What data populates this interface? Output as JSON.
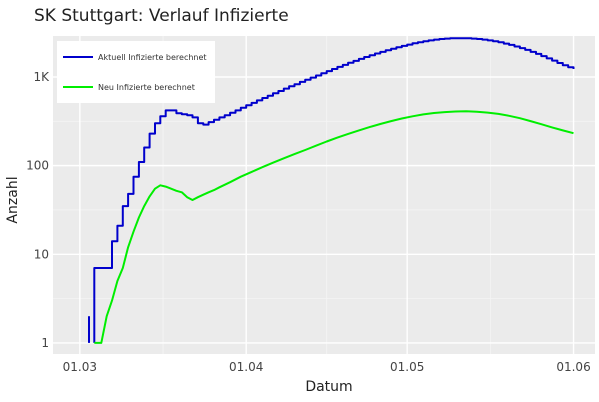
{
  "chart_data": {
    "type": "line",
    "title": "SK Stuttgart: Verlauf Infizierte",
    "xlabel": "Datum",
    "ylabel": "Anzahl",
    "y_scale": "log",
    "ylim": [
      0.75,
      2900
    ],
    "x_ticks": [
      {
        "value": 0,
        "label": "01.03"
      },
      {
        "value": 31,
        "label": "01.04"
      },
      {
        "value": 61,
        "label": "01.05"
      },
      {
        "value": 92,
        "label": "01.06"
      }
    ],
    "xlim": [
      -5,
      96
    ],
    "y_ticks": [
      {
        "value": 1,
        "label": "1"
      },
      {
        "value": 10,
        "label": "10"
      },
      {
        "value": 100,
        "label": "100"
      },
      {
        "value": 1000,
        "label": "1K"
      }
    ],
    "grid": true,
    "legend_position": "top-left",
    "series": [
      {
        "name": "Aktuell Infizierte berechnet",
        "color": "#0000cc",
        "step": true,
        "segments": [
          [
            [
              1.7,
              2
            ],
            [
              1.7,
              1
            ]
          ],
          [
            [
              2.7,
              1
            ],
            [
              2.7,
              7
            ],
            [
              3,
              7
            ],
            [
              4,
              7
            ],
            [
              5,
              7
            ],
            [
              6,
              14
            ],
            [
              7,
              21
            ],
            [
              8,
              35
            ],
            [
              9,
              48
            ],
            [
              10,
              75
            ],
            [
              11,
              110
            ],
            [
              12,
              160
            ],
            [
              13,
              230
            ],
            [
              14,
              300
            ],
            [
              15,
              360
            ],
            [
              16,
              420
            ],
            [
              17,
              420
            ],
            [
              18,
              390
            ],
            [
              19,
              380
            ],
            [
              20,
              370
            ],
            [
              21,
              350
            ],
            [
              22,
              300
            ],
            [
              23,
              290
            ],
            [
              24,
              310
            ],
            [
              25,
              330
            ],
            [
              26,
              350
            ],
            [
              27,
              370
            ],
            [
              28,
              395
            ],
            [
              29,
              420
            ],
            [
              30,
              450
            ],
            [
              31,
              480
            ],
            [
              32,
              510
            ],
            [
              33,
              545
            ],
            [
              34,
              580
            ],
            [
              35,
              615
            ],
            [
              36,
              655
            ],
            [
              37,
              695
            ],
            [
              38,
              740
            ],
            [
              39,
              785
            ],
            [
              40,
              830
            ],
            [
              41,
              880
            ],
            [
              42,
              930
            ],
            [
              43,
              985
            ],
            [
              44,
              1040
            ],
            [
              45,
              1100
            ],
            [
              46,
              1165
            ],
            [
              47,
              1230
            ],
            [
              48,
              1300
            ],
            [
              49,
              1370
            ],
            [
              50,
              1445
            ],
            [
              51,
              1520
            ],
            [
              52,
              1600
            ],
            [
              53,
              1680
            ],
            [
              54,
              1760
            ],
            [
              55,
              1840
            ],
            [
              56,
              1920
            ],
            [
              57,
              2000
            ],
            [
              58,
              2080
            ],
            [
              59,
              2160
            ],
            [
              60,
              2240
            ],
            [
              61,
              2320
            ],
            [
              62,
              2400
            ],
            [
              63,
              2470
            ],
            [
              64,
              2530
            ],
            [
              65,
              2590
            ],
            [
              66,
              2640
            ],
            [
              67,
              2680
            ],
            [
              68,
              2710
            ],
            [
              69,
              2730
            ],
            [
              70,
              2740
            ],
            [
              71,
              2740
            ],
            [
              72,
              2730
            ],
            [
              73,
              2710
            ],
            [
              74,
              2680
            ],
            [
              75,
              2640
            ],
            [
              76,
              2590
            ],
            [
              77,
              2530
            ],
            [
              78,
              2460
            ],
            [
              79,
              2380
            ],
            [
              80,
              2300
            ],
            [
              81,
              2210
            ],
            [
              82,
              2120
            ],
            [
              83,
              2020
            ],
            [
              84,
              1920
            ],
            [
              85,
              1820
            ],
            [
              86,
              1720
            ],
            [
              87,
              1620
            ],
            [
              88,
              1530
            ],
            [
              89,
              1440
            ],
            [
              90,
              1360
            ],
            [
              91,
              1290
            ],
            [
              92,
              1230
            ]
          ]
        ]
      },
      {
        "name": "Neu Infizierte berechnet",
        "color": "#00ee00",
        "step": false,
        "segments": [
          [
            [
              2.7,
              1
            ],
            [
              4,
              1
            ],
            [
              5,
              2
            ],
            [
              6,
              3
            ],
            [
              7,
              5
            ],
            [
              8,
              7
            ],
            [
              9,
              12
            ],
            [
              10,
              18
            ],
            [
              11,
              26
            ],
            [
              12,
              35
            ],
            [
              13,
              45
            ],
            [
              14,
              55
            ],
            [
              15,
              60
            ],
            [
              16,
              58
            ],
            [
              17,
              55
            ],
            [
              18,
              52
            ],
            [
              19,
              50
            ],
            [
              20,
              44
            ],
            [
              21,
              41
            ],
            [
              22,
              44
            ],
            [
              23,
              47
            ],
            [
              24,
              50
            ],
            [
              25,
              53
            ],
            [
              26,
              57
            ],
            [
              28,
              65
            ],
            [
              30,
              75
            ],
            [
              32,
              85
            ],
            [
              34,
              96
            ],
            [
              36,
              108
            ],
            [
              38,
              121
            ],
            [
              40,
              135
            ],
            [
              42,
              150
            ],
            [
              44,
              168
            ],
            [
              46,
              187
            ],
            [
              48,
              207
            ],
            [
              50,
              228
            ],
            [
              52,
              250
            ],
            [
              54,
              272
            ],
            [
              56,
              295
            ],
            [
              58,
              318
            ],
            [
              60,
              340
            ],
            [
              62,
              360
            ],
            [
              64,
              378
            ],
            [
              66,
              392
            ],
            [
              68,
              402
            ],
            [
              70,
              408
            ],
            [
              72,
              410
            ],
            [
              74,
              406
            ],
            [
              76,
              397
            ],
            [
              78,
              383
            ],
            [
              80,
              365
            ],
            [
              82,
              343
            ],
            [
              84,
              318
            ],
            [
              86,
              293
            ],
            [
              88,
              270
            ],
            [
              90,
              250
            ],
            [
              92,
              232
            ]
          ]
        ]
      }
    ]
  }
}
